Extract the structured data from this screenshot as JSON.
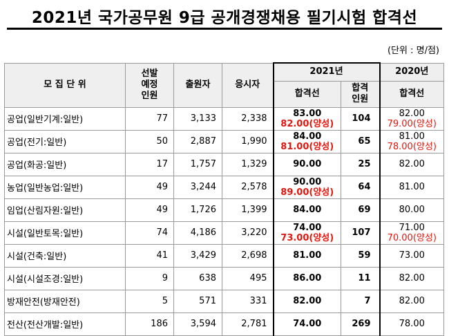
{
  "title": "2021년 국가공무원 9급 공개경쟁채용 필기시험 합격선",
  "unit": "(단위 : 명/점)",
  "headers": {
    "unit": "모 집 단 위",
    "planned": [
      "선발",
      "예정",
      "인원"
    ],
    "applicants": "출원자",
    "examinees": "응시자",
    "year2021": "2021년",
    "year2020": "2020년",
    "cutoff2021": "합격선",
    "passed": [
      "합격",
      "인원"
    ],
    "cutoff2020": "합격선"
  },
  "rows": [
    {
      "name": "공업(일반기계:일반)",
      "planned": "77",
      "applicants": "3,133",
      "examinees": "2,338",
      "cut2021": "83.00",
      "cut2021b": "82.00(양성)",
      "passed": "104",
      "cut2020": "82.00",
      "cut2020b": "79.00(양성)"
    },
    {
      "name": "공업(전기:일반)",
      "planned": "50",
      "applicants": "2,887",
      "examinees": "1,990",
      "cut2021": "84.00",
      "cut2021b": "81.00(양성)",
      "passed": "65",
      "cut2020": "81.00",
      "cut2020b": "78.00(양성)"
    },
    {
      "name": "공업(화공:일반)",
      "planned": "17",
      "applicants": "1,757",
      "examinees": "1,329",
      "cut2021": "90.00",
      "cut2021b": "",
      "passed": "25",
      "cut2020": "82.00",
      "cut2020b": ""
    },
    {
      "name": "농업(일반농업:일반)",
      "planned": "49",
      "applicants": "3,244",
      "examinees": "2,578",
      "cut2021": "90.00",
      "cut2021b": "89.00(양성)",
      "passed": "64",
      "cut2020": "81.00",
      "cut2020b": ""
    },
    {
      "name": "임업(산림자원:일반)",
      "planned": "49",
      "applicants": "1,726",
      "examinees": "1,399",
      "cut2021": "84.00",
      "cut2021b": "",
      "passed": "69",
      "cut2020": "80.00",
      "cut2020b": ""
    },
    {
      "name": "시설(일반토목:일반)",
      "planned": "74",
      "applicants": "4,186",
      "examinees": "3,220",
      "cut2021": "74.00",
      "cut2021b": "73.00(양성)",
      "passed": "107",
      "cut2020": "71.00",
      "cut2020b": "70.00(양성)"
    },
    {
      "name": "시설(건축:일반)",
      "planned": "41",
      "applicants": "3,429",
      "examinees": "2,698",
      "cut2021": "81.00",
      "cut2021b": "",
      "passed": "59",
      "cut2020": "73.00",
      "cut2020b": ""
    },
    {
      "name": "시설(시설조경:일반)",
      "planned": "9",
      "applicants": "638",
      "examinees": "495",
      "cut2021": "86.00",
      "cut2021b": "",
      "passed": "11",
      "cut2020": "82.00",
      "cut2020b": ""
    },
    {
      "name": "방재안전(방재안전)",
      "planned": "5",
      "applicants": "571",
      "examinees": "331",
      "cut2021": "82.00",
      "cut2021b": "",
      "passed": "7",
      "cut2020": "82.00",
      "cut2020b": ""
    },
    {
      "name": "전산(전산개발:일반)",
      "planned": "186",
      "applicants": "3,594",
      "examinees": "2,781",
      "cut2021": "74.00",
      "cut2021b": "",
      "passed": "269",
      "cut2020": "78.00",
      "cut2020b": ""
    }
  ],
  "colors": {
    "accent_red": "#e3170d",
    "header_bg": "#efefef",
    "border": "#9a9a9a"
  }
}
